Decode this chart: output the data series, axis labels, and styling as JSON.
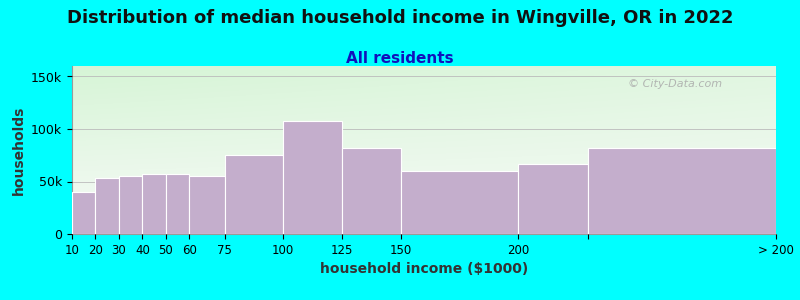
{
  "title": "Distribution of median household income in Wingville, OR in 2022",
  "subtitle": "All residents",
  "xlabel": "household income ($1000)",
  "ylabel": "households",
  "background_color": "#00FFFF",
  "bar_color": "#C4AECC",
  "bar_edge_color": "#FFFFFF",
  "watermark": "© City-Data.com",
  "bin_left": [
    10,
    20,
    30,
    40,
    50,
    60,
    75,
    100,
    125,
    150,
    200,
    230
  ],
  "bin_right": [
    20,
    30,
    40,
    50,
    60,
    75,
    100,
    125,
    150,
    200,
    230,
    310
  ],
  "values": [
    40000,
    53000,
    55000,
    57000,
    57000,
    55000,
    75000,
    108000,
    82000,
    60000,
    67000,
    82000
  ],
  "xtick_positions": [
    10,
    20,
    30,
    40,
    50,
    60,
    75,
    100,
    125,
    150,
    200,
    230,
    310
  ],
  "xtick_labels": [
    "10",
    "20",
    "30",
    "40",
    "50",
    "60",
    "75",
    "100",
    "125",
    "150",
    "200",
    "",
    "> 200"
  ],
  "ylim": [
    0,
    160000
  ],
  "yticks": [
    0,
    50000,
    100000,
    150000
  ],
  "ytick_labels": [
    "0",
    "50k",
    "100k",
    "150k"
  ],
  "xlim": [
    10,
    310
  ],
  "title_fontsize": 13,
  "subtitle_fontsize": 11,
  "subtitle_color": "#1111BB",
  "axis_label_fontsize": 10
}
